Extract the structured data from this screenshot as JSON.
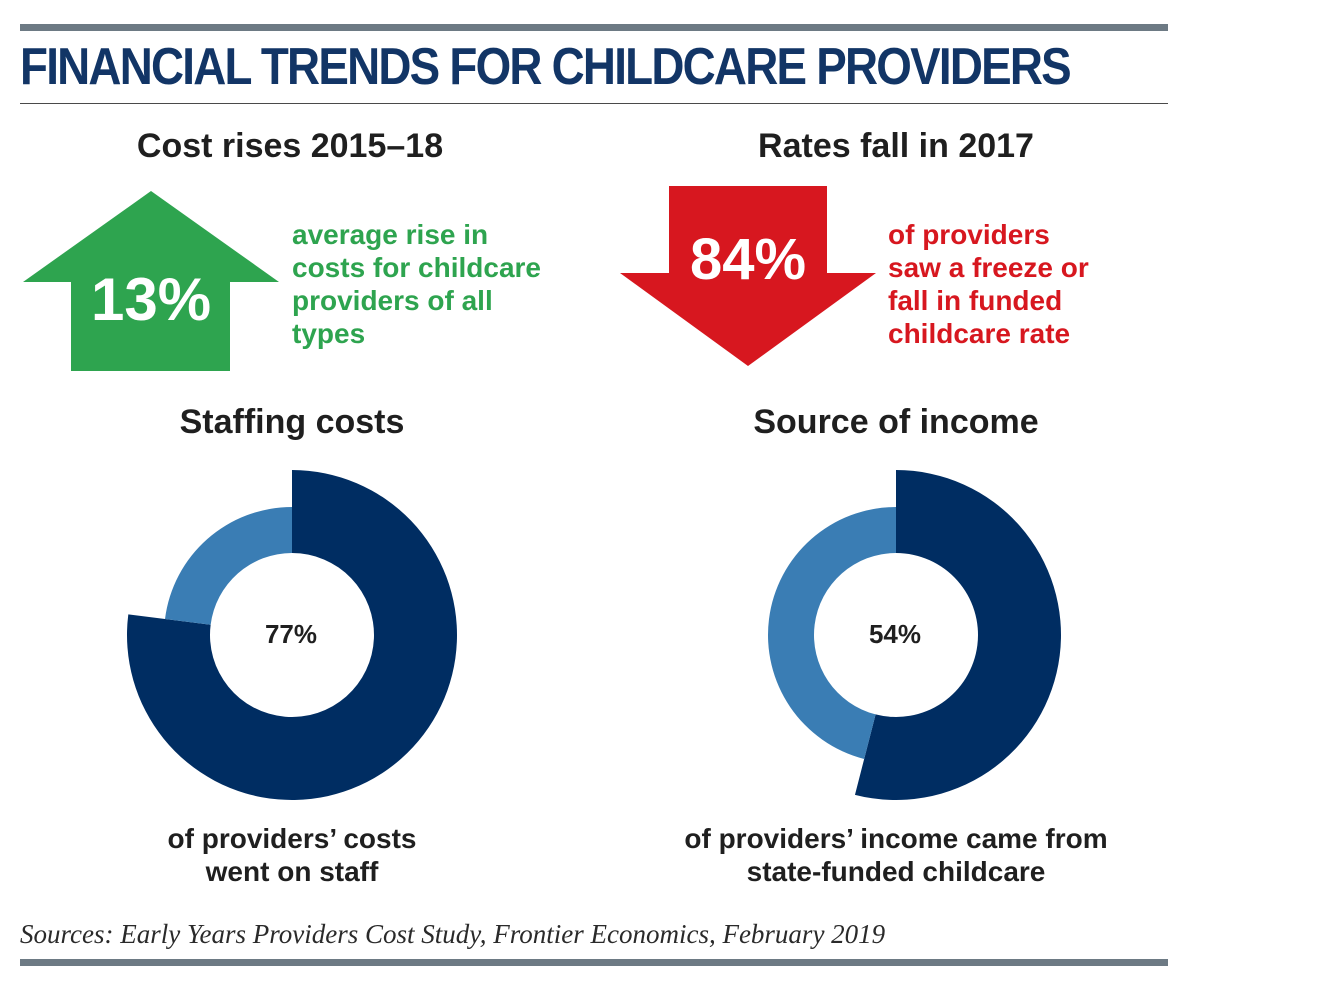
{
  "title": "FINANCIAL TRENDS FOR CHILDCARE PROVIDERS",
  "colors": {
    "title": "#123566",
    "increase": "#2ea44f",
    "decrease": "#d7171f",
    "primary_segment": "#002d62",
    "secondary_segment": "#3a7db4",
    "rules": "#6d7a84"
  },
  "chart_data": [
    {
      "type": "stat-arrow",
      "title": "Cost rises 2015–18",
      "direction": "up",
      "icon": "up-arrow-icon",
      "value": 13,
      "value_label": "13%",
      "description": [
        "average rise in",
        "costs for childcare",
        "providers of all",
        "types"
      ]
    },
    {
      "type": "stat-arrow",
      "title": "Rates fall in 2017",
      "direction": "down",
      "icon": "down-arrow-icon",
      "value": 84,
      "value_label": "84%",
      "description": [
        "of providers",
        "saw a freeze or",
        "fall in funded",
        "childcare rate"
      ]
    },
    {
      "type": "pie",
      "title": "Staffing costs",
      "slices": [
        {
          "value": 77,
          "color": "#002d62"
        },
        {
          "value": 23,
          "color": "#3a7db4"
        }
      ],
      "center_label": "77%",
      "caption": [
        "of providers’ costs",
        "went on staff"
      ]
    },
    {
      "type": "pie",
      "title": "Source of income",
      "slices": [
        {
          "value": 54,
          "color": "#002d62"
        },
        {
          "value": 46,
          "color": "#3a7db4"
        }
      ],
      "center_label": "54%",
      "caption": [
        "of providers’ income came from",
        "state-funded childcare"
      ]
    }
  ],
  "source": "Sources: Early Years Providers Cost Study, Frontier Economics, February 2019"
}
